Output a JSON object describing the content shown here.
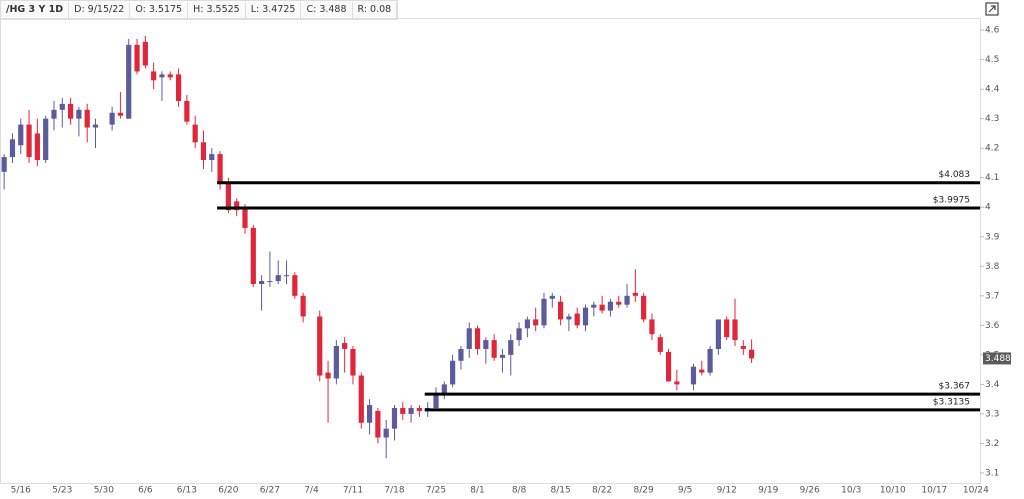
{
  "header": [
    "/HG 3 Y 1D",
    "D: 9/15/22",
    "O: 3.5175",
    "H: 3.5525",
    "L: 3.4725",
    "C: 3.488",
    "R: 0.08"
  ],
  "chart_data": {
    "type": "candlestick",
    "categories": [
      null,
      null,
      "5/16",
      null,
      null,
      null,
      null,
      "5/23",
      null,
      null,
      null,
      null,
      "5/30",
      null,
      null,
      null,
      null,
      "6/6",
      null,
      null,
      null,
      null,
      "6/13",
      null,
      null,
      null,
      null,
      "6/20",
      null,
      null,
      null,
      null,
      "6/27",
      null,
      null,
      null,
      null,
      "7/4",
      null,
      null,
      null,
      null,
      "7/11",
      null,
      null,
      null,
      null,
      "7/18",
      null,
      null,
      null,
      null,
      "7/25",
      null,
      null,
      null,
      null,
      "8/1",
      null,
      null,
      null,
      null,
      "8/8",
      null,
      null,
      null,
      null,
      "8/15",
      null,
      null,
      null,
      null,
      "8/22",
      null,
      null,
      null,
      null,
      "8/29",
      null,
      null,
      null,
      null,
      "9/5",
      null,
      null,
      null,
      null,
      "9/12",
      null,
      null,
      null,
      null,
      "9/19",
      null,
      null,
      null,
      null,
      "9/26",
      null,
      null,
      null,
      null,
      "10/3",
      null,
      null,
      null,
      null,
      "10/10",
      null,
      null,
      null,
      null,
      "10/17",
      null,
      null,
      null,
      null,
      "10/24"
    ],
    "open": [
      4.12,
      4.17,
      4.21,
      4.28,
      4.25,
      4.16,
      4.3,
      4.33,
      4.35,
      4.3,
      4.33,
      4.27,
      null,
      4.28,
      4.32,
      4.3,
      4.55,
      4.56,
      4.46,
      4.44,
      4.45,
      4.45,
      4.36,
      4.28,
      4.22,
      4.16,
      4.18,
      4.08,
      4.02,
      4.0,
      3.93,
      3.74,
      3.75,
      3.75,
      3.77,
      3.77,
      3.7,
      null,
      3.63,
      3.44,
      3.42,
      3.54,
      3.52,
      3.43,
      3.27,
      3.31,
      3.22,
      3.25,
      3.32,
      3.3,
      3.32,
      3.31,
      3.32,
      3.37,
      3.4,
      3.48,
      3.52,
      3.59,
      3.52,
      3.55,
      3.49,
      3.5,
      3.55,
      3.59,
      3.62,
      3.6,
      3.69,
      3.68,
      3.62,
      3.64,
      3.6,
      3.66,
      3.67,
      3.65,
      3.68,
      3.67,
      3.71,
      3.7,
      3.62,
      3.56,
      3.51,
      3.41,
      null,
      3.4,
      3.45,
      3.44,
      3.52,
      3.62,
      3.62,
      3.53,
      3.5175,
      null,
      null,
      null,
      null,
      null,
      null,
      null,
      null,
      null,
      null,
      null,
      null,
      null,
      null,
      null,
      null,
      null,
      null,
      null,
      null,
      null,
      null,
      null,
      null,
      null,
      null,
      null
    ],
    "high": [
      4.18,
      4.25,
      4.3,
      4.33,
      4.3,
      4.31,
      4.36,
      4.37,
      4.37,
      4.34,
      4.35,
      4.3,
      null,
      4.34,
      4.39,
      4.57,
      4.57,
      4.58,
      4.49,
      4.46,
      4.46,
      4.47,
      4.38,
      4.31,
      4.26,
      4.2,
      4.19,
      4.1,
      4.03,
      4.01,
      3.94,
      3.77,
      3.85,
      3.82,
      3.82,
      3.78,
      3.71,
      null,
      3.65,
      3.48,
      3.55,
      3.56,
      3.53,
      3.44,
      3.35,
      3.32,
      3.28,
      3.33,
      3.34,
      3.33,
      3.33,
      3.34,
      3.39,
      3.41,
      3.5,
      3.53,
      3.61,
      3.6,
      3.56,
      3.57,
      3.52,
      3.57,
      3.61,
      3.63,
      3.66,
      3.71,
      3.71,
      3.7,
      3.64,
      3.66,
      3.67,
      3.68,
      3.7,
      3.69,
      3.7,
      3.74,
      3.79,
      3.71,
      3.64,
      3.57,
      3.52,
      3.45,
      null,
      3.47,
      3.48,
      3.53,
      3.62,
      3.63,
      3.69,
      3.55,
      3.5525,
      null,
      null,
      null,
      null,
      null,
      null,
      null,
      null,
      null,
      null,
      null,
      null,
      null,
      null,
      null,
      null,
      null,
      null,
      null,
      null,
      null,
      null,
      null,
      null,
      null,
      null,
      null
    ],
    "low": [
      4.06,
      4.15,
      4.18,
      4.15,
      4.14,
      4.15,
      4.26,
      4.27,
      4.28,
      4.24,
      4.22,
      4.2,
      null,
      4.26,
      4.3,
      4.3,
      4.45,
      4.47,
      4.4,
      4.36,
      4.43,
      4.34,
      4.28,
      4.2,
      4.13,
      4.12,
      4.06,
      3.98,
      3.97,
      3.91,
      3.73,
      3.65,
      3.73,
      3.74,
      3.74,
      3.69,
      3.61,
      null,
      3.41,
      3.27,
      3.4,
      3.44,
      3.4,
      3.25,
      3.23,
      3.2,
      3.15,
      3.21,
      3.28,
      3.27,
      3.29,
      3.29,
      3.31,
      3.35,
      3.39,
      3.45,
      3.49,
      3.5,
      3.47,
      3.48,
      3.44,
      3.43,
      3.53,
      3.56,
      3.58,
      3.59,
      3.66,
      3.6,
      3.58,
      3.59,
      3.58,
      3.63,
      3.64,
      3.63,
      3.66,
      3.66,
      3.68,
      3.61,
      3.55,
      3.5,
      3.41,
      3.38,
      null,
      3.38,
      3.43,
      3.43,
      3.5,
      3.55,
      3.53,
      3.5,
      3.4725,
      null,
      null,
      null,
      null,
      null,
      null,
      null,
      null,
      null,
      null,
      null,
      null,
      null,
      null,
      null,
      null,
      null,
      null,
      null,
      null,
      null,
      null,
      null,
      null,
      null,
      null,
      null
    ],
    "close": [
      4.17,
      4.23,
      4.28,
      4.17,
      4.16,
      4.3,
      4.33,
      4.35,
      4.3,
      4.33,
      4.27,
      4.28,
      null,
      4.32,
      4.31,
      4.55,
      4.46,
      4.48,
      4.43,
      4.45,
      4.44,
      4.36,
      4.29,
      4.22,
      4.16,
      4.18,
      4.08,
      3.99,
      3.99,
      3.93,
      3.74,
      3.75,
      3.75,
      3.77,
      3.77,
      3.7,
      3.63,
      null,
      3.43,
      3.42,
      3.53,
      3.52,
      3.43,
      3.27,
      3.33,
      3.22,
      3.25,
      3.32,
      3.3,
      3.32,
      3.31,
      3.32,
      3.37,
      3.4,
      3.48,
      3.52,
      3.59,
      3.52,
      3.55,
      3.49,
      3.5,
      3.55,
      3.59,
      3.62,
      3.6,
      3.69,
      3.7,
      3.62,
      3.63,
      3.6,
      3.66,
      3.67,
      3.65,
      3.68,
      3.67,
      3.7,
      3.7,
      3.62,
      3.57,
      3.51,
      3.41,
      3.4,
      null,
      3.46,
      3.44,
      3.52,
      3.62,
      3.56,
      3.55,
      3.52,
      3.488,
      null,
      null,
      null,
      null,
      null,
      null,
      null,
      null,
      null,
      null,
      null,
      null,
      null,
      null,
      null,
      null,
      null,
      null,
      null,
      null,
      null,
      null,
      null,
      null,
      null,
      null,
      null
    ],
    "up_color": "#5c5b9c",
    "down_color": "#e0263b",
    "levels": [
      {
        "value": 4.083,
        "label": "$4.083"
      },
      {
        "value": 3.9975,
        "label": "$3.9975"
      },
      {
        "value": 3.367,
        "label": "$3.367"
      },
      {
        "value": 3.3135,
        "label": "$3.3135"
      }
    ],
    "last_price": 3.488,
    "ylim": [
      3.066,
      4.641
    ],
    "yticks": [
      3.1,
      3.2,
      3.3,
      3.4,
      3.5,
      3.6,
      3.7,
      3.8,
      3.9,
      4,
      4.1,
      4.2,
      4.3,
      4.4,
      4.5,
      4.6
    ],
    "grid": false
  }
}
